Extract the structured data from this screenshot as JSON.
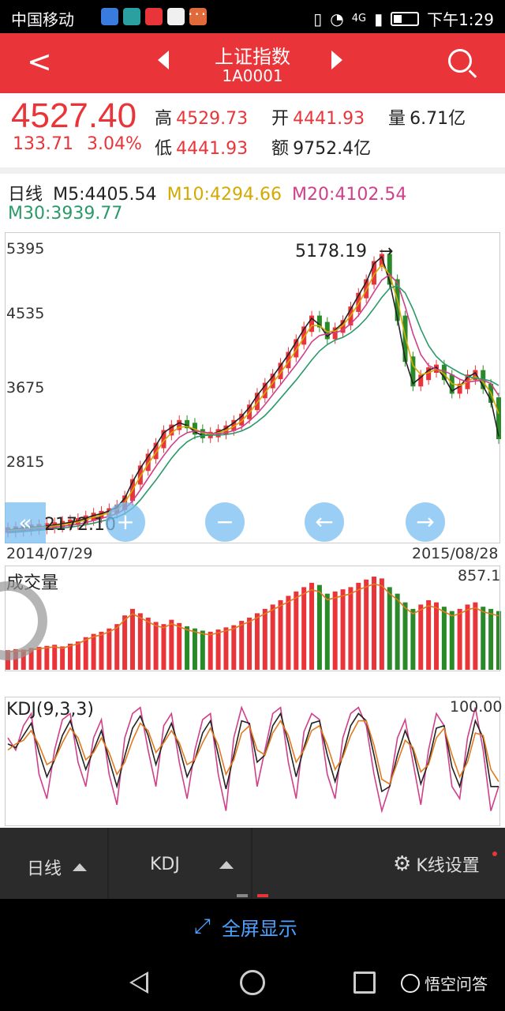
{
  "status_bar": {
    "carrier": "中国移动",
    "dots": "···",
    "network": "4G",
    "time": "下午1:29"
  },
  "header": {
    "title": "上证指数",
    "code": "1A0001",
    "back_icon": "chevron-left-icon",
    "prev_icon": "triangle-left-icon",
    "next_icon": "triangle-right-icon",
    "search_icon": "search-icon"
  },
  "quote": {
    "price": "4527.40",
    "change": "133.71",
    "change_pct": "3.04%",
    "high_label": "高",
    "high": "4529.73",
    "low_label": "低",
    "low": "4441.93",
    "open_label": "开",
    "open": "4441.93",
    "amount_label": "额",
    "amount": "9752.4亿",
    "volume_label": "量",
    "volume": "6.71亿"
  },
  "ma_bar": {
    "period": "日线",
    "m5": "M5:4405.54",
    "m10": "M10:4294.66",
    "m20": "M20:4102.54",
    "m30": "M30:3939.77"
  },
  "colors": {
    "accent": "#e9353a",
    "up": "#e9353a",
    "down": "#2a8a2a",
    "ma5": "#222222",
    "ma10": "#d4aa00",
    "ma20": "#d0408a",
    "ma30": "#2a9a6a"
  },
  "chart_data": [
    {
      "type": "line",
      "y_ticks": [
        "5395",
        "4535",
        "3675",
        "2815"
      ],
      "x_start": "2014/07/29",
      "x_end": "2015/08/28",
      "ylim": [
        2040,
        5395
      ],
      "annotations": [
        {
          "text": "5178.19",
          "y": 5178.19
        },
        {
          "text": "2172.10",
          "y": 2172.1
        }
      ],
      "series": [
        {
          "values": [
            2170,
            2180,
            2190,
            2200,
            2205,
            2215,
            2225,
            2240,
            2255,
            2270,
            2300,
            2330,
            2350,
            2380,
            2420,
            2520,
            2700,
            2850,
            2980,
            3100,
            3240,
            3300,
            3350,
            3320,
            3250,
            3210,
            3220,
            3250,
            3290,
            3350,
            3420,
            3520,
            3650,
            3760,
            3860,
            3980,
            4100,
            4240,
            4380,
            4500,
            4430,
            4300,
            4370,
            4450,
            4600,
            4750,
            4900,
            5100,
            5178,
            4900,
            4500,
            4050,
            3780,
            3850,
            3930,
            3960,
            3850,
            3700,
            3750,
            3850,
            3900,
            3750,
            3600,
            3200
          ]
        },
        {
          "values": [
            2165,
            2172,
            2180,
            2190,
            2198,
            2205,
            2215,
            2228,
            2242,
            2258,
            2280,
            2310,
            2335,
            2360,
            2395,
            2470,
            2610,
            2760,
            2900,
            3020,
            3150,
            3240,
            3300,
            3310,
            3280,
            3240,
            3225,
            3240,
            3265,
            3310,
            3370,
            3460,
            3570,
            3680,
            3790,
            3900,
            4020,
            4150,
            4290,
            4420,
            4420,
            4350,
            4360,
            4420,
            4530,
            4660,
            4810,
            4980,
            5090,
            4980,
            4700,
            4300,
            3980,
            3880,
            3900,
            3940,
            3890,
            3780,
            3760,
            3800,
            3860,
            3800,
            3680,
            3450
          ]
        },
        {
          "values": [
            2150,
            2158,
            2166,
            2175,
            2184,
            2192,
            2200,
            2210,
            2222,
            2235,
            2252,
            2275,
            2298,
            2322,
            2350,
            2400,
            2490,
            2610,
            2740,
            2870,
            2990,
            3100,
            3190,
            3240,
            3260,
            3250,
            3235,
            3230,
            3240,
            3265,
            3300,
            3370,
            3450,
            3550,
            3660,
            3770,
            3880,
            3990,
            4110,
            4240,
            4310,
            4330,
            4340,
            4370,
            4440,
            4530,
            4650,
            4790,
            4920,
            4980,
            4890,
            4630,
            4330,
            4100,
            3980,
            3940,
            3920,
            3880,
            3830,
            3800,
            3810,
            3820,
            3780,
            3650
          ]
        },
        {
          "values": [
            2140,
            2146,
            2152,
            2160,
            2168,
            2176,
            2184,
            2192,
            2202,
            2214,
            2228,
            2246,
            2266,
            2288,
            2312,
            2350,
            2410,
            2500,
            2610,
            2720,
            2840,
            2960,
            3060,
            3140,
            3190,
            3210,
            3215,
            3215,
            3220,
            3235,
            3260,
            3300,
            3360,
            3430,
            3520,
            3620,
            3720,
            3820,
            3930,
            4040,
            4140,
            4210,
            4260,
            4290,
            4340,
            4410,
            4500,
            4610,
            4730,
            4830,
            4860,
            4780,
            4600,
            4380,
            4200,
            4080,
            4000,
            3950,
            3900,
            3860,
            3840,
            3830,
            3810,
            3760
          ]
        }
      ]
    },
    {
      "type": "bar",
      "title": "成交量",
      "max_label": "857.1",
      "ylim": [
        0,
        857.1
      ],
      "series": [
        {
          "values": [
            180,
            190,
            185,
            200,
            210,
            220,
            230,
            215,
            240,
            260,
            300,
            330,
            350,
            380,
            420,
            500,
            560,
            520,
            480,
            440,
            420,
            460,
            430,
            400,
            380,
            360,
            350,
            370,
            390,
            410,
            450,
            480,
            520,
            560,
            600,
            640,
            680,
            720,
            760,
            800,
            780,
            700,
            720,
            740,
            760,
            800,
            830,
            857,
            840,
            760,
            700,
            620,
            560,
            600,
            640,
            620,
            580,
            540,
            560,
            600,
            620,
            580,
            560,
            540
          ]
        }
      ]
    },
    {
      "type": "line",
      "title": "KDJ(9,3,3)",
      "max_label": "100.00",
      "ylim": [
        0,
        100
      ],
      "series": [
        {
          "values": [
            70,
            60,
            80,
            90,
            40,
            20,
            60,
            85,
            90,
            50,
            30,
            70,
            85,
            40,
            15,
            70,
            90,
            95,
            60,
            30,
            80,
            90,
            50,
            20,
            60,
            85,
            90,
            40,
            10,
            70,
            95,
            80,
            30,
            60,
            90,
            95,
            50,
            20,
            75,
            90,
            85,
            40,
            20,
            70,
            90,
            95,
            80,
            40,
            10,
            30,
            70,
            85,
            50,
            15,
            60,
            90,
            80,
            30,
            20,
            70,
            95,
            60,
            10,
            30
          ]
        },
        {
          "values": [
            65,
            62,
            72,
            82,
            58,
            38,
            52,
            72,
            84,
            64,
            44,
            60,
            76,
            52,
            30,
            55,
            78,
            88,
            72,
            48,
            68,
            82,
            62,
            38,
            52,
            74,
            84,
            56,
            28,
            56,
            84,
            82,
            50,
            56,
            80,
            90,
            66,
            38,
            62,
            82,
            84,
            56,
            34,
            56,
            80,
            90,
            84,
            56,
            26,
            30,
            56,
            76,
            60,
            32,
            50,
            78,
            80,
            46,
            30,
            56,
            84,
            70,
            30,
            30
          ]
        },
        {
          "values": [
            60,
            65,
            68,
            76,
            64,
            48,
            52,
            66,
            78,
            70,
            52,
            58,
            70,
            58,
            40,
            50,
            68,
            82,
            76,
            58,
            66,
            76,
            66,
            48,
            52,
            66,
            78,
            64,
            40,
            52,
            74,
            80,
            60,
            56,
            74,
            84,
            72,
            50,
            60,
            76,
            80,
            64,
            44,
            54,
            72,
            84,
            84,
            64,
            36,
            32,
            50,
            68,
            62,
            42,
            48,
            70,
            78,
            56,
            38,
            50,
            74,
            72,
            44,
            34
          ]
        }
      ]
    }
  ],
  "toolbar": {
    "period_label": "日线",
    "indicator_label": "KDJ",
    "settings_label": "K线设置",
    "settings_icon": "gear-icon",
    "fullscreen_label": "全屏显示",
    "fullscreen_icon": "expand-icon"
  },
  "nav": {
    "back_icon": "nav-back-icon",
    "home_icon": "nav-home-icon",
    "recent_icon": "nav-recent-icon",
    "watermark": "悟空问答"
  }
}
